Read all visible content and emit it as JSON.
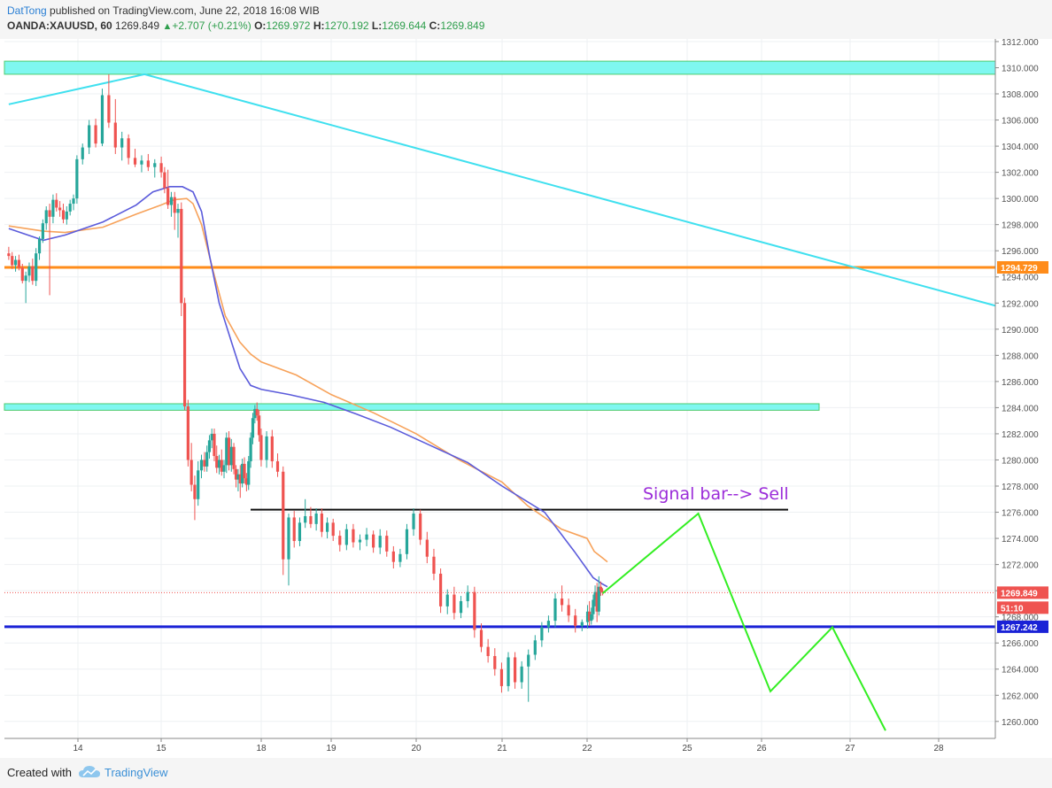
{
  "header": {
    "author": "DatTong",
    "published_text": "published on TradingView.com, June 22, 2018 16:08 WIB",
    "symbol": "OANDA:XAUUSD, 60",
    "last": "1269.849",
    "change": "+2.707 (+0.21%)",
    "open_label": "O:",
    "open": "1269.972",
    "high_label": "H:",
    "high": "1270.192",
    "low_label": "L:",
    "low": "1269.644",
    "close_label": "C:",
    "close": "1269.849"
  },
  "footer": {
    "created_with": "Created with",
    "brand": "TradingView"
  },
  "colors": {
    "up_candle": "#26a69a",
    "down_candle": "#ef5350",
    "ma_fast": "#5b5bdb",
    "ma_slow": "#f7a25a",
    "resistance_line": "#ff8c1a",
    "support_line": "#1a22d6",
    "trendline": "#3fe0ef",
    "zone": "#7ff7f0",
    "projection": "#33ee22",
    "annotation": "#9b2cd9"
  },
  "chart_data": {
    "type": "candlestick",
    "title": "",
    "ylim": [
      1258.7,
      1312.2
    ],
    "y_ticks": [
      "1312.000",
      "1310.000",
      "1308.000",
      "1306.000",
      "1304.000",
      "1302.000",
      "1300.000",
      "1298.000",
      "1296.000",
      "1294.000",
      "1292.000",
      "1290.000",
      "1288.000",
      "1286.000",
      "1284.000",
      "1282.000",
      "1280.000",
      "1278.000",
      "1276.000",
      "1274.000",
      "1272.000",
      "1270.000",
      "1268.000",
      "1266.000",
      "1264.000",
      "1262.000",
      "1260.000"
    ],
    "x_ticks": [
      {
        "label": "14",
        "x": 14
      },
      {
        "label": "15",
        "x": 15
      },
      {
        "label": "18",
        "x": 18
      },
      {
        "label": "19",
        "x": 19
      },
      {
        "label": "20",
        "x": 20
      },
      {
        "label": "21",
        "x": 21
      },
      {
        "label": "22",
        "x": 22
      },
      {
        "label": "25",
        "x": 25
      },
      {
        "label": "26",
        "x": 26
      },
      {
        "label": "27",
        "x": 27
      },
      {
        "label": "28",
        "x": 28
      }
    ],
    "price_labels": [
      {
        "text": "1294.729",
        "value": 1294.729,
        "color": "#ff8c1a"
      },
      {
        "text": "1269.849",
        "value": 1269.849,
        "color": "#ef5350"
      },
      {
        "text": "51:10",
        "value": 1268.7,
        "color": "#ef5350"
      },
      {
        "text": "1267.242",
        "value": 1267.242,
        "color": "#1a22d6"
      }
    ],
    "annotation_text": "Signal bar--> Sell",
    "horizontal_lines": [
      {
        "value": 1294.729,
        "x_from": 12.3,
        "x_to": 29.2,
        "color": "#ff8c1a"
      },
      {
        "value": 1267.242,
        "x_from": 12.3,
        "x_to": 29.2,
        "color": "#1a22d6"
      },
      {
        "value": 1276.2,
        "x_from": 17.6,
        "x_to": 26.3,
        "color": "#111111"
      },
      {
        "value": 1269.849,
        "x_from": 12.3,
        "x_to": 29.2,
        "color": "#ef5350",
        "dotted": true
      }
    ],
    "zones": [
      {
        "from": 1309.5,
        "to": 1310.5,
        "x_from": 12.3,
        "x_to": 29.2
      },
      {
        "from": 1283.8,
        "to": 1284.3,
        "x_from": 12.3,
        "x_to": 26.65
      }
    ],
    "trendline": [
      [
        12.4,
        1307.2
      ],
      [
        14.8,
        1309.5
      ],
      [
        29.2,
        1291.8
      ]
    ],
    "projection": [
      [
        22.65,
        1269.8
      ],
      [
        25.15,
        1275.9
      ],
      [
        26.1,
        1262.3
      ],
      [
        26.8,
        1267.2
      ],
      [
        27.4,
        1259.3
      ]
    ],
    "ma_fast": [
      [
        12.4,
        1297.7
      ],
      [
        13.2,
        1296.8
      ],
      [
        13.7,
        1297.2
      ],
      [
        14.3,
        1298.2
      ],
      [
        14.7,
        1299.5
      ],
      [
        14.9,
        1300.5
      ],
      [
        15.2,
        1300.9
      ],
      [
        15.5,
        1300.9
      ],
      [
        15.75,
        1300.5
      ],
      [
        15.95,
        1299.0
      ],
      [
        16.2,
        1295.5
      ],
      [
        16.5,
        1292.0
      ],
      [
        16.9,
        1289.0
      ],
      [
        17.2,
        1287.0
      ],
      [
        17.6,
        1285.7
      ],
      [
        18.0,
        1285.4
      ],
      [
        18.4,
        1285.0
      ],
      [
        18.9,
        1284.4
      ],
      [
        19.3,
        1283.5
      ],
      [
        19.7,
        1282.5
      ],
      [
        20.2,
        1281.0
      ],
      [
        20.6,
        1279.8
      ],
      [
        21.0,
        1278.0
      ],
      [
        21.5,
        1276.0
      ],
      [
        21.85,
        1273.0
      ],
      [
        22.25,
        1271.0
      ],
      [
        22.65,
        1270.5
      ],
      [
        22.85,
        1270.3
      ]
    ],
    "ma_slow": [
      [
        12.4,
        1297.9
      ],
      [
        13.2,
        1297.5
      ],
      [
        13.7,
        1297.4
      ],
      [
        14.3,
        1297.8
      ],
      [
        14.7,
        1298.8
      ],
      [
        15.0,
        1299.5
      ],
      [
        15.3,
        1299.9
      ],
      [
        15.6,
        1300.0
      ],
      [
        15.75,
        1299.6
      ],
      [
        15.95,
        1298.0
      ],
      [
        16.3,
        1294.5
      ],
      [
        16.7,
        1291.0
      ],
      [
        17.2,
        1289.0
      ],
      [
        17.6,
        1288.1
      ],
      [
        18.0,
        1287.5
      ],
      [
        18.5,
        1286.5
      ],
      [
        19.0,
        1285.0
      ],
      [
        19.5,
        1283.6
      ],
      [
        20.0,
        1282.0
      ],
      [
        20.5,
        1280.0
      ],
      [
        21.0,
        1278.3
      ],
      [
        21.3,
        1276.5
      ],
      [
        21.7,
        1274.7
      ],
      [
        22.0,
        1274.0
      ],
      [
        22.3,
        1273.0
      ],
      [
        22.65,
        1272.5
      ],
      [
        22.85,
        1272.2
      ]
    ],
    "ohlc": [
      [
        1295.8,
        1296.3,
        1295.3,
        1295.6
      ],
      [
        1295.6,
        1295.9,
        1294.6,
        1294.9
      ],
      [
        1294.9,
        1295.6,
        1294.4,
        1295.3
      ],
      [
        1295.3,
        1295.7,
        1294.5,
        1294.7
      ],
      [
        1294.7,
        1295.0,
        1293.5,
        1293.7
      ],
      [
        1293.7,
        1294.4,
        1292.0,
        1294.1
      ],
      [
        1294.1,
        1295.1,
        1293.6,
        1294.8
      ],
      [
        1294.8,
        1295.4,
        1293.4,
        1293.7
      ],
      [
        1293.7,
        1296.2,
        1293.3,
        1295.8
      ],
      [
        1295.8,
        1297.1,
        1295.3,
        1296.9
      ],
      [
        1296.9,
        1298.4,
        1296.6,
        1298.1
      ],
      [
        1298.1,
        1299.4,
        1297.6,
        1299.1
      ],
      [
        1299.1,
        1299.6,
        1292.6,
        1298.6
      ],
      [
        1298.6,
        1300.3,
        1298.1,
        1299.9
      ],
      [
        1299.9,
        1300.4,
        1299.0,
        1299.3
      ],
      [
        1299.3,
        1299.8,
        1298.6,
        1299.1
      ],
      [
        1299.1,
        1299.6,
        1298.1,
        1298.4
      ],
      [
        1298.4,
        1299.4,
        1298.0,
        1299.0
      ],
      [
        1299.0,
        1299.9,
        1298.7,
        1299.6
      ],
      [
        1299.6,
        1300.3,
        1299.1,
        1300.0
      ],
      [
        1300.0,
        1303.3,
        1299.6,
        1303.0
      ],
      [
        1303.0,
        1304.2,
        1302.6,
        1303.9
      ],
      [
        1303.9,
        1306.0,
        1303.4,
        1305.6
      ],
      [
        1305.6,
        1306.1,
        1303.9,
        1304.2
      ],
      [
        1304.2,
        1308.4,
        1304.0,
        1307.9
      ],
      [
        1307.9,
        1309.5,
        1305.4,
        1305.8
      ],
      [
        1305.8,
        1307.6,
        1303.4,
        1303.9
      ],
      [
        1303.9,
        1305.1,
        1302.9,
        1304.6
      ],
      [
        1304.6,
        1304.9,
        1302.6,
        1303.1
      ],
      [
        1303.1,
        1303.8,
        1302.4,
        1302.6
      ],
      [
        1302.6,
        1303.3,
        1302.0,
        1302.9
      ],
      [
        1302.9,
        1303.4,
        1302.1,
        1302.4
      ],
      [
        1302.4,
        1303.0,
        1301.6,
        1302.7
      ],
      [
        1302.7,
        1303.2,
        1301.6,
        1302.0
      ],
      [
        1302.0,
        1302.4,
        1300.4,
        1300.8
      ],
      [
        1300.8,
        1302.2,
        1299.2,
        1299.5
      ],
      [
        1299.5,
        1300.5,
        1298.6,
        1300.1
      ],
      [
        1300.1,
        1300.5,
        1297.6,
        1298.9
      ],
      [
        1298.9,
        1299.6,
        1297.0,
        1299.2
      ],
      [
        1299.2,
        1299.7,
        1291.0,
        1292.0
      ],
      [
        1292.0,
        1292.4,
        1283.8,
        1284.1
      ],
      [
        1284.1,
        1284.6,
        1279.5,
        1280.0
      ],
      [
        1280.0,
        1281.3,
        1277.6,
        1278.1
      ],
      [
        1278.1,
        1278.8,
        1275.4,
        1277.0
      ],
      [
        1277.0,
        1279.9,
        1276.5,
        1279.2
      ],
      [
        1279.2,
        1280.4,
        1278.6,
        1280.0
      ],
      [
        1280.0,
        1280.6,
        1279.1,
        1279.5
      ],
      [
        1279.5,
        1281.1,
        1279.1,
        1280.6
      ],
      [
        1280.6,
        1281.9,
        1280.1,
        1281.5
      ],
      [
        1281.5,
        1282.4,
        1280.9,
        1282.0
      ],
      [
        1282.0,
        1282.4,
        1279.9,
        1280.3
      ],
      [
        1280.3,
        1281.1,
        1279.0,
        1279.4
      ],
      [
        1279.4,
        1280.4,
        1278.9,
        1280.0
      ],
      [
        1280.0,
        1280.8,
        1278.8,
        1279.1
      ],
      [
        1279.1,
        1280.0,
        1278.6,
        1279.6
      ],
      [
        1279.6,
        1282.1,
        1279.0,
        1281.7
      ],
      [
        1281.7,
        1282.2,
        1279.2,
        1279.6
      ],
      [
        1279.6,
        1281.6,
        1279.1,
        1281.0
      ],
      [
        1281.0,
        1281.3,
        1278.9,
        1279.3
      ],
      [
        1279.3,
        1279.6,
        1277.9,
        1278.5
      ],
      [
        1278.5,
        1279.3,
        1277.6,
        1278.9
      ],
      [
        1278.9,
        1279.6,
        1277.1,
        1278.2
      ],
      [
        1278.2,
        1280.1,
        1277.9,
        1279.7
      ],
      [
        1279.7,
        1280.2,
        1278.2,
        1278.6
      ],
      [
        1278.6,
        1279.0,
        1277.6,
        1278.1
      ],
      [
        1278.1,
        1280.3,
        1277.7,
        1279.9
      ],
      [
        1279.9,
        1282.1,
        1279.4,
        1281.7
      ],
      [
        1281.7,
        1283.6,
        1281.2,
        1283.2
      ],
      [
        1283.2,
        1284.2,
        1282.8,
        1283.9
      ],
      [
        1283.9,
        1284.4,
        1283.0,
        1283.4
      ],
      [
        1283.4,
        1283.8,
        1281.4,
        1281.9
      ],
      [
        1281.9,
        1282.4,
        1279.5,
        1280.0
      ],
      [
        1280.0,
        1282.2,
        1279.4,
        1281.8
      ],
      [
        1281.8,
        1282.3,
        1279.4,
        1279.9
      ],
      [
        1279.9,
        1280.5,
        1278.7,
        1279.1
      ],
      [
        1279.1,
        1279.5,
        1271.2,
        1272.4
      ],
      [
        1272.4,
        1275.9,
        1270.4,
        1275.6
      ],
      [
        1275.6,
        1276.1,
        1273.3,
        1273.8
      ],
      [
        1273.8,
        1275.6,
        1273.4,
        1275.2
      ],
      [
        1275.2,
        1277.0,
        1274.8,
        1275.7
      ],
      [
        1275.7,
        1276.4,
        1274.8,
        1275.1
      ],
      [
        1275.1,
        1276.3,
        1274.6,
        1275.9
      ],
      [
        1275.9,
        1276.3,
        1274.1,
        1274.5
      ],
      [
        1274.5,
        1275.6,
        1274.0,
        1275.2
      ],
      [
        1275.2,
        1275.5,
        1273.8,
        1274.2
      ],
      [
        1274.2,
        1274.6,
        1273.0,
        1273.5
      ],
      [
        1273.5,
        1275.1,
        1273.1,
        1274.7
      ],
      [
        1274.7,
        1275.1,
        1273.3,
        1273.7
      ],
      [
        1273.7,
        1274.3,
        1273.1,
        1273.9
      ],
      [
        1273.9,
        1274.8,
        1273.4,
        1274.3
      ],
      [
        1274.3,
        1274.6,
        1272.9,
        1273.3
      ],
      [
        1273.3,
        1274.7,
        1272.8,
        1274.2
      ],
      [
        1274.2,
        1274.6,
        1272.6,
        1273.0
      ],
      [
        1273.0,
        1273.4,
        1271.7,
        1272.2
      ],
      [
        1272.2,
        1273.2,
        1271.8,
        1272.8
      ],
      [
        1272.8,
        1275.1,
        1272.4,
        1274.7
      ],
      [
        1274.7,
        1276.3,
        1274.2,
        1275.9
      ],
      [
        1275.9,
        1276.2,
        1273.5,
        1273.9
      ],
      [
        1273.9,
        1274.5,
        1272.1,
        1272.6
      ],
      [
        1272.6,
        1273.2,
        1270.8,
        1271.3
      ],
      [
        1271.3,
        1271.7,
        1268.3,
        1268.8
      ],
      [
        1268.8,
        1270.1,
        1268.2,
        1269.7
      ],
      [
        1269.7,
        1270.3,
        1267.8,
        1268.3
      ],
      [
        1268.3,
        1269.6,
        1267.9,
        1269.2
      ],
      [
        1269.2,
        1270.4,
        1268.7,
        1269.9
      ],
      [
        1269.9,
        1270.3,
        1266.4,
        1267.0
      ],
      [
        1267.0,
        1267.5,
        1265.3,
        1265.7
      ],
      [
        1265.7,
        1266.3,
        1264.5,
        1265.0
      ],
      [
        1265.0,
        1265.6,
        1263.5,
        1264.0
      ],
      [
        1264.0,
        1264.5,
        1262.2,
        1262.7
      ],
      [
        1262.7,
        1265.3,
        1262.3,
        1264.9
      ],
      [
        1264.9,
        1265.3,
        1262.5,
        1263.0
      ],
      [
        1263.0,
        1264.6,
        1262.5,
        1264.2
      ],
      [
        1264.2,
        1265.5,
        1261.5,
        1265.1
      ],
      [
        1265.1,
        1266.6,
        1264.7,
        1266.2
      ],
      [
        1266.2,
        1267.6,
        1265.7,
        1267.2
      ],
      [
        1267.2,
        1268.1,
        1266.8,
        1267.7
      ],
      [
        1267.7,
        1269.8,
        1267.2,
        1269.4
      ],
      [
        1269.4,
        1270.4,
        1268.4,
        1268.9
      ],
      [
        1268.9,
        1269.4,
        1267.6,
        1268.1
      ],
      [
        1268.1,
        1268.6,
        1266.8,
        1267.3
      ],
      [
        1267.3,
        1267.8,
        1266.9,
        1267.6
      ],
      [
        1267.6,
        1268.9,
        1267.1,
        1268.4
      ],
      [
        1268.4,
        1269.2,
        1267.3,
        1267.7
      ],
      [
        1267.7,
        1268.7,
        1267.4,
        1268.2
      ],
      [
        1268.2,
        1269.7,
        1267.8,
        1269.3
      ],
      [
        1269.3,
        1270.4,
        1268.8,
        1269.9
      ],
      [
        1269.9,
        1270.6,
        1267.6,
        1268.4
      ],
      [
        1268.4,
        1271.1,
        1268.1,
        1270.3
      ],
      [
        1270.3,
        1270.7,
        1269.6,
        1269.97
      ],
      [
        1269.97,
        1270.19,
        1269.64,
        1269.85
      ]
    ]
  }
}
